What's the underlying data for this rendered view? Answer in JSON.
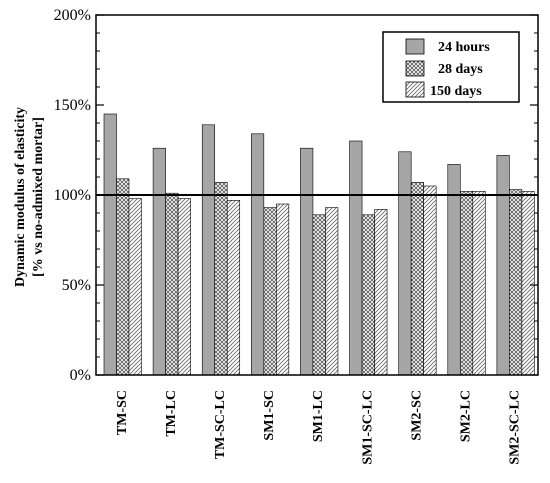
{
  "chart_data": {
    "type": "bar",
    "categories": [
      "TM-SC",
      "TM-LC",
      "TM-SC-LC",
      "SM1-SC",
      "SM1-LC",
      "SM1-SC-LC",
      "SM2-SC",
      "SM2-LC",
      "SM2-SC-LC"
    ],
    "series": [
      {
        "name": "24 hours",
        "values": [
          145,
          126,
          139,
          134,
          126,
          130,
          124,
          117,
          122
        ],
        "pattern": "solid"
      },
      {
        "name": "28 days",
        "values": [
          109,
          101,
          107,
          93,
          89,
          89,
          107,
          102,
          103
        ],
        "pattern": "crosshatch"
      },
      {
        "name": "150 days",
        "values": [
          98,
          98,
          97,
          95,
          93,
          92,
          105,
          102,
          102
        ],
        "pattern": "diagonal"
      }
    ],
    "ylabel_line1": "Dynamic modulus of elasticity",
    "ylabel_line2": "[% vs no-admixed mortar]",
    "ylim": [
      0,
      200
    ],
    "yticks": [
      "0%",
      "50%",
      "100%",
      "150%",
      "200%"
    ],
    "ytick_values": [
      0,
      50,
      100,
      150,
      200
    ],
    "reference_line": 100,
    "legend_position": "top-right",
    "colors": {
      "solid": "#a6a6a6",
      "edge": "#000000"
    }
  }
}
